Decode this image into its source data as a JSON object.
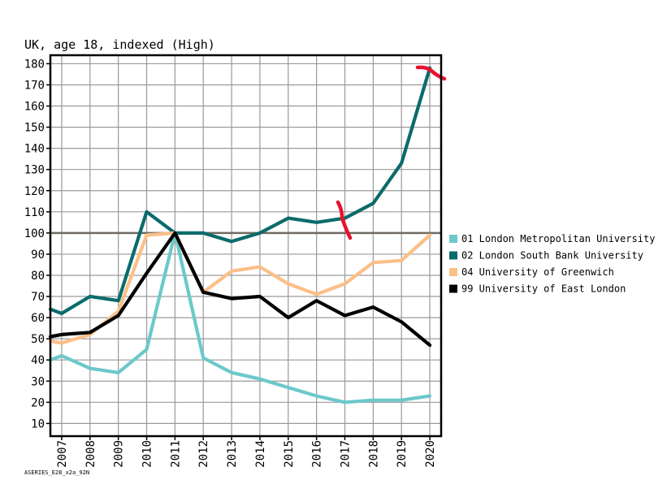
{
  "chart_data": {
    "type": "line",
    "title": "UK, age 18, indexed (High)",
    "xlabel": "",
    "ylabel": "",
    "categories": [
      "2007",
      "2008",
      "2009",
      "2010",
      "2011",
      "2012",
      "2013",
      "2014",
      "2015",
      "2016",
      "2017",
      "2018",
      "2019",
      "2020"
    ],
    "x_start": 2006.6,
    "xlim": [
      2006.6,
      2020.4
    ],
    "ylim": [
      4,
      184
    ],
    "yticks": [
      10,
      20,
      30,
      40,
      50,
      60,
      70,
      80,
      90,
      100,
      110,
      120,
      130,
      140,
      150,
      160,
      170,
      180
    ],
    "reference_line": 100,
    "series": [
      {
        "name": "01 London Metropolitan University",
        "color": "#6cc8cb",
        "x": [
          2006.6,
          2007,
          2008,
          2009,
          2010,
          2011,
          2012,
          2013,
          2014,
          2015,
          2016,
          2017,
          2018,
          2019,
          2020
        ],
        "values": [
          40,
          42,
          36,
          34,
          45,
          100,
          41,
          34,
          31,
          27,
          23,
          20,
          21,
          21,
          23
        ]
      },
      {
        "name": "02 London South Bank University",
        "color": "#0b6b6b",
        "x": [
          2006.6,
          2007,
          2008,
          2009,
          2010,
          2011,
          2012,
          2013,
          2014,
          2015,
          2016,
          2017,
          2018,
          2019,
          2020
        ],
        "values": [
          64,
          62,
          70,
          68,
          110,
          100,
          100,
          96,
          100,
          107,
          105,
          107,
          114,
          133,
          178
        ]
      },
      {
        "name": "04 University of Greenwich",
        "color": "#fbbf88",
        "x": [
          2006.6,
          2007,
          2008,
          2009,
          2010,
          2011,
          2012,
          2013,
          2014,
          2015,
          2016,
          2017,
          2018,
          2019,
          2020
        ],
        "values": [
          49,
          48,
          52,
          63,
          99,
          100,
          72,
          82,
          84,
          76,
          71,
          76,
          86,
          87,
          99
        ]
      },
      {
        "name": "99 University of East London",
        "color": "#000000",
        "x": [
          2006.6,
          2007,
          2008,
          2009,
          2010,
          2011,
          2012,
          2013,
          2014,
          2015,
          2016,
          2017,
          2018,
          2019,
          2020
        ],
        "values": [
          51,
          52,
          53,
          61,
          81,
          100,
          72,
          69,
          70,
          60,
          68,
          61,
          65,
          58,
          47
        ]
      }
    ],
    "legend_position": "right",
    "footnote": "ASERIES_E28_x2a_92N"
  }
}
